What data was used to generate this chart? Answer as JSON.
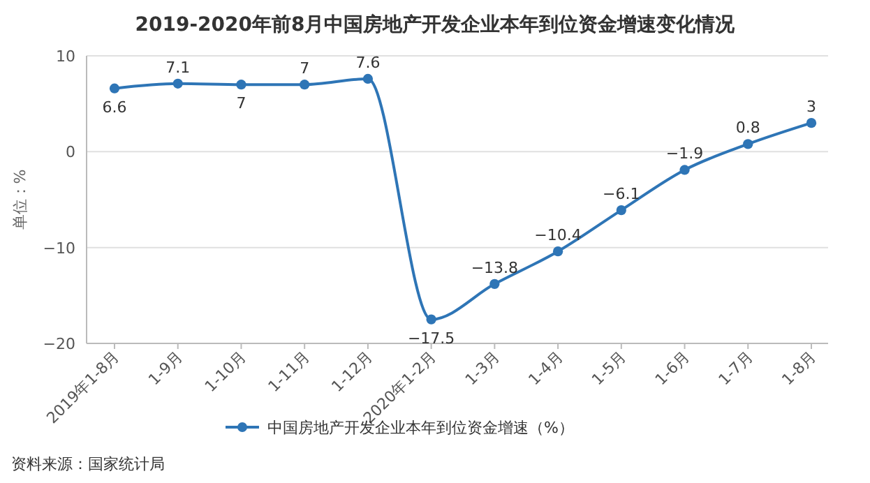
{
  "chart_data": {
    "type": "line",
    "title": "2019-2020年前8月中国房地产开发企业本年到位资金增速变化情况",
    "ylabel": "单位：%",
    "categories": [
      "2019年1-8月",
      "1-9月",
      "1-10月",
      "1-11月",
      "1-12月",
      "2020年1-2月",
      "1-3月",
      "1-4月",
      "1-5月",
      "1-6月",
      "1-7月",
      "1-8月"
    ],
    "series": [
      {
        "name": "中国房地产开发企业本年到位资金增速（%）",
        "color": "#2e75b6",
        "values": [
          6.6,
          7.1,
          7,
          7,
          7.6,
          -17.5,
          -13.8,
          -10.4,
          -6.1,
          -1.9,
          0.8,
          3
        ]
      }
    ],
    "ylim": [
      -20,
      10
    ],
    "yticks": [
      -20,
      -10,
      0,
      10
    ],
    "grid": "y",
    "legend": "bottom",
    "marker": "circle",
    "data_labels": true,
    "annotations": [
      "资料来源：国家统计局"
    ]
  }
}
